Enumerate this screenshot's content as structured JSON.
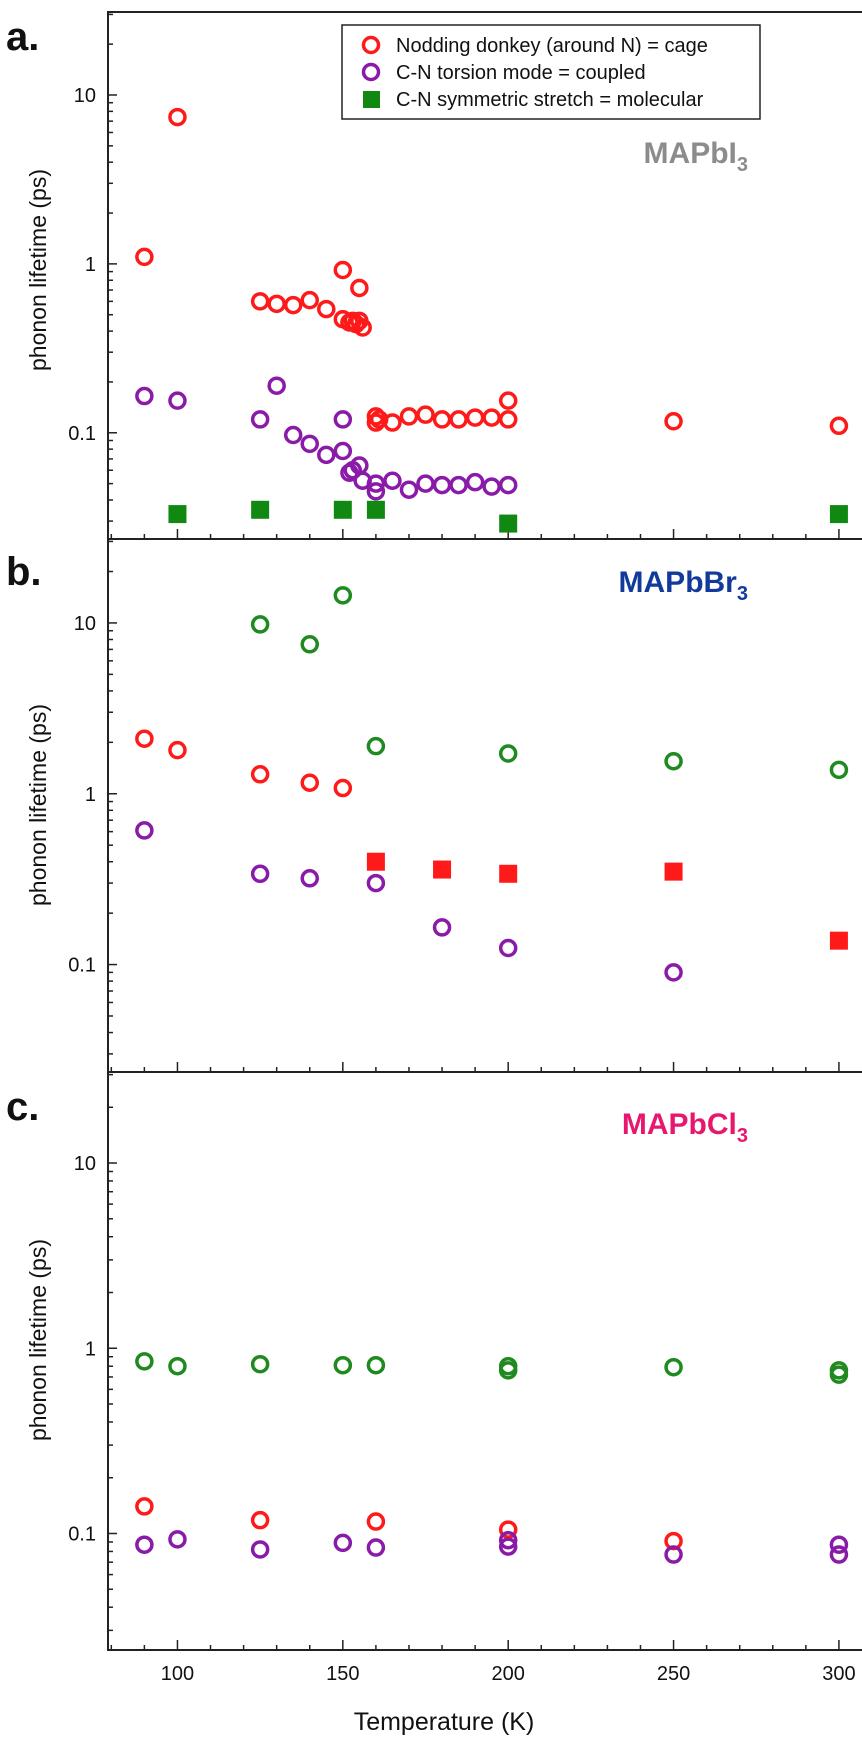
{
  "chart_data": [
    {
      "panel_label": "a.",
      "type": "scatter",
      "title": "",
      "xlabel": "",
      "ylabel": "phonon lifetime (ps)",
      "xlim": [
        79,
        310
      ],
      "ylim": [
        0.0235,
        31
      ],
      "yscale": "log",
      "yticks": [
        0.1,
        1,
        10
      ],
      "ytick_labels": [
        "0.1",
        "1",
        "10"
      ],
      "xticks": [
        100,
        150,
        200,
        250,
        300
      ],
      "grid": false,
      "legend_position": "top-right",
      "annotation": {
        "text": "MAPbI",
        "subscript": "3",
        "color": "#8c8c8c"
      },
      "series": [
        {
          "name": "Nodding donkey (around N) = cage",
          "marker": "open-circle",
          "color": "#ff1a1a",
          "x": [
            90,
            100,
            125,
            130,
            135,
            140,
            145,
            150,
            150,
            152,
            153,
            154,
            155,
            155,
            156,
            160,
            160,
            161,
            165,
            170,
            175,
            180,
            185,
            190,
            195,
            200,
            200,
            250,
            300
          ],
          "y": [
            1.1,
            7.4,
            0.6,
            0.58,
            0.57,
            0.61,
            0.54,
            0.92,
            0.47,
            0.45,
            0.46,
            0.44,
            0.72,
            0.46,
            0.42,
            0.125,
            0.115,
            0.12,
            0.115,
            0.125,
            0.128,
            0.12,
            0.12,
            0.123,
            0.123,
            0.155,
            0.12,
            0.117,
            0.11
          ]
        },
        {
          "name": "C-N torsion mode = coupled",
          "marker": "open-circle",
          "color": "#8a1aa8",
          "x": [
            90,
            100,
            125,
            130,
            135,
            140,
            145,
            150,
            150,
            152,
            153,
            155,
            156,
            160,
            160,
            165,
            170,
            175,
            180,
            185,
            190,
            195,
            200
          ],
          "y": [
            0.165,
            0.155,
            0.12,
            0.19,
            0.097,
            0.086,
            0.074,
            0.12,
            0.078,
            0.058,
            0.06,
            0.064,
            0.052,
            0.05,
            0.045,
            0.052,
            0.046,
            0.05,
            0.049,
            0.049,
            0.051,
            0.048,
            0.049
          ]
        },
        {
          "name": "C-N symmetric stretch = molecular",
          "marker": "filled-square",
          "color": "#118811",
          "x": [
            100,
            125,
            150,
            160,
            200,
            300
          ],
          "y": [
            0.033,
            0.035,
            0.035,
            0.035,
            0.029,
            0.033
          ]
        }
      ]
    },
    {
      "panel_label": "b.",
      "type": "scatter",
      "title": "",
      "xlabel": "",
      "ylabel": "phonon lifetime (ps)",
      "xlim": [
        79,
        310
      ],
      "ylim": [
        0.0235,
        31
      ],
      "yscale": "log",
      "yticks": [
        0.1,
        1,
        10
      ],
      "ytick_labels": [
        "0.1",
        "1",
        "10"
      ],
      "xticks": [
        100,
        150,
        200,
        250,
        300
      ],
      "grid": false,
      "annotation": {
        "text": "MAPbBr",
        "subscript": "3",
        "color": "#123a9b"
      },
      "series": [
        {
          "marker": "open-circle",
          "color": "#1f8a1f",
          "x": [
            125,
            140,
            150,
            160,
            200,
            250,
            300
          ],
          "y": [
            9.8,
            7.5,
            14.5,
            1.9,
            1.72,
            1.55,
            1.38
          ]
        },
        {
          "marker": "open-circle",
          "color": "#ff1a1a",
          "x": [
            90,
            100,
            125,
            140,
            150
          ],
          "y": [
            2.1,
            1.8,
            1.3,
            1.16,
            1.08
          ]
        },
        {
          "marker": "open-circle",
          "color": "#8a1aa8",
          "x": [
            90,
            125,
            140,
            160,
            180,
            200,
            250
          ],
          "y": [
            0.61,
            0.34,
            0.32,
            0.3,
            0.165,
            0.125,
            0.09
          ]
        },
        {
          "marker": "filled-square",
          "color": "#ff1a1a",
          "x": [
            160,
            180,
            200,
            250,
            300
          ],
          "y": [
            0.4,
            0.36,
            0.34,
            0.35,
            0.138
          ]
        }
      ]
    },
    {
      "panel_label": "c.",
      "type": "scatter",
      "title": "",
      "xlabel": "Temperature (K)",
      "ylabel": "phonon lifetime (ps)",
      "xlim": [
        79,
        310
      ],
      "ylim": [
        0.0235,
        31
      ],
      "yscale": "log",
      "yticks": [
        0.1,
        1,
        10
      ],
      "ytick_labels": [
        "0.1",
        "1",
        "10"
      ],
      "xticks": [
        100,
        150,
        200,
        250,
        300
      ],
      "xtick_labels": [
        "100",
        "150",
        "200",
        "250",
        "300"
      ],
      "grid": false,
      "annotation": {
        "text": "MAPbCl",
        "subscript": "3",
        "color": "#e8176e"
      },
      "series": [
        {
          "marker": "open-circle",
          "color": "#1f8a1f",
          "x": [
            90,
            100,
            125,
            150,
            160,
            200,
            200,
            250,
            300,
            300
          ],
          "y": [
            0.85,
            0.8,
            0.82,
            0.81,
            0.81,
            0.8,
            0.76,
            0.79,
            0.76,
            0.72
          ]
        },
        {
          "marker": "open-circle",
          "color": "#ff1a1a",
          "x": [
            90,
            125,
            160,
            200,
            250
          ],
          "y": [
            0.14,
            0.118,
            0.116,
            0.105,
            0.091
          ]
        },
        {
          "marker": "open-circle",
          "color": "#8a1aa8",
          "x": [
            90,
            100,
            125,
            150,
            160,
            200,
            200,
            250,
            300,
            300
          ],
          "y": [
            0.087,
            0.093,
            0.082,
            0.089,
            0.084,
            0.092,
            0.085,
            0.077,
            0.087,
            0.077
          ]
        }
      ]
    }
  ]
}
